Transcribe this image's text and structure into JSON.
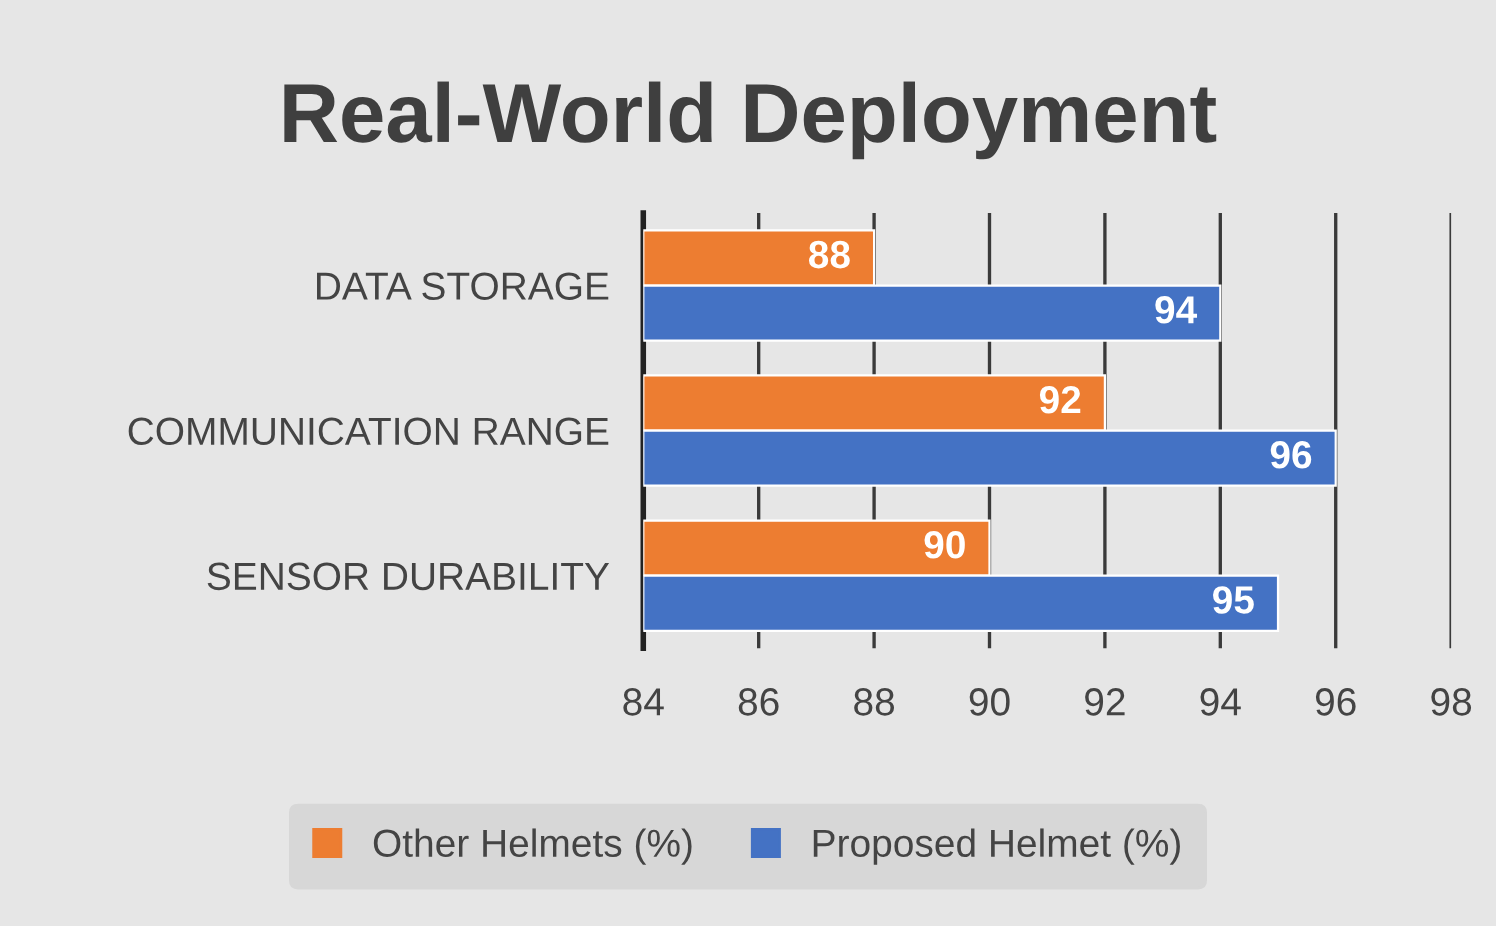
{
  "chart_data": {
    "type": "bar",
    "orientation": "horizontal",
    "title": "Real-World Deployment",
    "categories": [
      "DATA STORAGE",
      "COMMUNICATION RANGE",
      "SENSOR DURABILITY"
    ],
    "series": [
      {
        "name": "Other Helmets (%)",
        "color": "#ed7d31",
        "values": [
          88,
          92,
          90
        ]
      },
      {
        "name": "Proposed Helmet (%)",
        "color": "#4472c4",
        "values": [
          94,
          96,
          95
        ]
      }
    ],
    "xlim": [
      84,
      98
    ],
    "xticks": [
      84,
      86,
      88,
      90,
      92,
      94,
      96,
      98
    ],
    "grid": "x",
    "legend": "bottom",
    "data_labels": true
  }
}
